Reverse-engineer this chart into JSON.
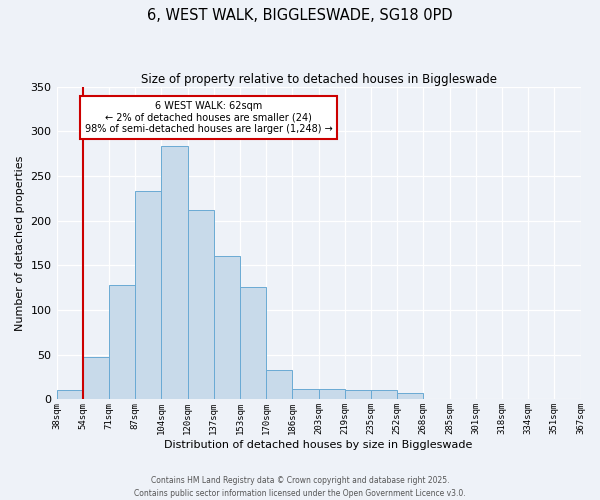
{
  "title1": "6, WEST WALK, BIGGLESWADE, SG18 0PD",
  "title2": "Size of property relative to detached houses in Biggleswade",
  "xlabel": "Distribution of detached houses by size in Biggleswade",
  "ylabel": "Number of detached properties",
  "footer1": "Contains HM Land Registry data © Crown copyright and database right 2025.",
  "footer2": "Contains public sector information licensed under the Open Government Licence v3.0.",
  "bin_labels": [
    "38sqm",
    "54sqm",
    "71sqm",
    "87sqm",
    "104sqm",
    "120sqm",
    "137sqm",
    "153sqm",
    "170sqm",
    "186sqm",
    "203sqm",
    "219sqm",
    "235sqm",
    "252sqm",
    "268sqm",
    "285sqm",
    "301sqm",
    "318sqm",
    "334sqm",
    "351sqm",
    "367sqm"
  ],
  "bar_values": [
    10,
    47,
    128,
    233,
    284,
    212,
    160,
    126,
    33,
    12,
    12,
    11,
    10,
    7,
    0,
    0,
    0,
    0,
    0,
    0
  ],
  "bar_color": "#c8daea",
  "bar_edge_color": "#6aaad4",
  "vline_x": 1,
  "vline_color": "#cc0000",
  "ylim": [
    0,
    350
  ],
  "yticks": [
    0,
    50,
    100,
    150,
    200,
    250,
    300,
    350
  ],
  "annotation_title": "6 WEST WALK: 62sqm",
  "annotation_line1": "← 2% of detached houses are smaller (24)",
  "annotation_line2": "98% of semi-detached houses are larger (1,248) →",
  "annotation_box_color": "#ffffff",
  "annotation_edge_color": "#cc0000",
  "background_color": "#eef2f8"
}
